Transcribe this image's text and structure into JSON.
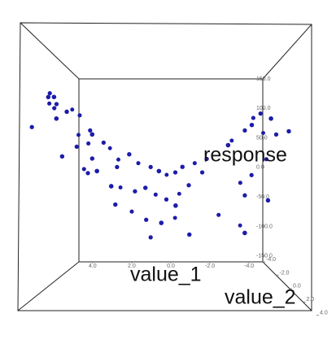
{
  "chart_data": {
    "type": "scatter3d",
    "x_label": "value_1",
    "y_label": "value_2",
    "z_label": "response",
    "color": "#1c1caa",
    "xlim": [
      4.7,
      -4.7
    ],
    "ylim": [
      -4,
      4
    ],
    "zlim": [
      -160,
      150
    ],
    "xticks": [
      {
        "value": 4,
        "label": "4.0"
      },
      {
        "value": 2,
        "label": "2.0"
      },
      {
        "value": 0,
        "label": "0.0"
      },
      {
        "value": -2,
        "label": "-2.0"
      },
      {
        "value": -4,
        "label": "-4.0"
      }
    ],
    "yticks": [
      {
        "value": -4,
        "label": "-4.0"
      },
      {
        "value": -2,
        "label": "-2.0"
      },
      {
        "value": 0,
        "label": "0.0"
      },
      {
        "value": 2,
        "label": "2.0"
      },
      {
        "value": 4,
        "label": "4.0"
      }
    ],
    "zticks": [
      {
        "value": 150,
        "label": "150.0"
      },
      {
        "value": 100,
        "label": "100.0"
      },
      {
        "value": 50,
        "label": "50.0"
      },
      {
        "value": 0,
        "label": "0.0"
      },
      {
        "value": -50,
        "label": "-50.0"
      },
      {
        "value": -100,
        "label": "-100.0"
      },
      {
        "value": -150,
        "label": "-150.0"
      }
    ],
    "x": [
      5.4,
      5.3,
      5.6,
      5.1,
      4.9,
      4.7,
      5.2,
      4.5,
      4.2,
      6.2,
      4.8,
      4.4,
      4.2,
      4.7,
      3.8,
      3.6,
      3.3,
      2.9,
      3.0,
      3.4,
      4.0,
      3.7,
      3.1,
      2.5,
      2.4,
      1.8,
      1.5,
      0.9,
      0.5,
      0.2,
      -0.2,
      -0.5,
      -1.1,
      -1.4,
      2.5,
      2.4,
      1.6,
      1.1,
      0.7,
      0.2,
      -0.2,
      -0.4,
      -0.8,
      2.4,
      1.8,
      1.1,
      0.4,
      -0.2,
      0.9,
      -0.8,
      -2.2,
      -1.6,
      -2.4,
      -2.9,
      -3.3,
      -3.5,
      -3.8,
      -4.0,
      -4.2,
      -4.4,
      -4.7,
      -5.1,
      -3.2,
      -3.3,
      -3.1,
      -3.3,
      -3.6,
      -4.2,
      -4.4
    ],
    "y": [
      -2,
      -1.5,
      -2.5,
      -2,
      -1,
      -3,
      -2,
      -1.5,
      -2.5,
      -2,
      -1,
      -3,
      -2,
      -1.5,
      -2.5,
      -2,
      -1,
      -3,
      -2,
      -1.5,
      -2.5,
      -2,
      -1,
      -3,
      -2,
      -1.5,
      -2.5,
      -2,
      -1,
      -3,
      -2,
      -1.5,
      -2.5,
      -2,
      -1,
      -3,
      -2,
      -1.5,
      -2.5,
      -2,
      -1,
      -3,
      -2,
      -1.5,
      -2.5,
      -2,
      -1,
      -3,
      -2,
      -1.5,
      -2.5,
      -2,
      -1,
      -3,
      -2,
      -1.5,
      -2.5,
      -2,
      -1,
      -3,
      -2,
      -1.5,
      -2.5,
      -2,
      -1,
      -3,
      -2,
      -1.5,
      -2.5
    ],
    "z": [
      109,
      100,
      97,
      93,
      97,
      91,
      87,
      79,
      79,
      59,
      67,
      51,
      30,
      15,
      36,
      54,
      45,
      30,
      36,
      12,
      -3,
      -9,
      -6,
      12,
      0,
      18,
      6,
      0,
      -6,
      -12,
      -8,
      0,
      6,
      -8,
      -27,
      -32,
      -36,
      -30,
      -42,
      -48,
      -54,
      -42,
      -27,
      -54,
      -68,
      -78,
      -78,
      -80,
      -104,
      -97,
      -73,
      12,
      30,
      42,
      54,
      60,
      75,
      79,
      67,
      54,
      48,
      51,
      -24,
      -42,
      -92,
      -92,
      -12,
      -48,
      12
    ]
  }
}
